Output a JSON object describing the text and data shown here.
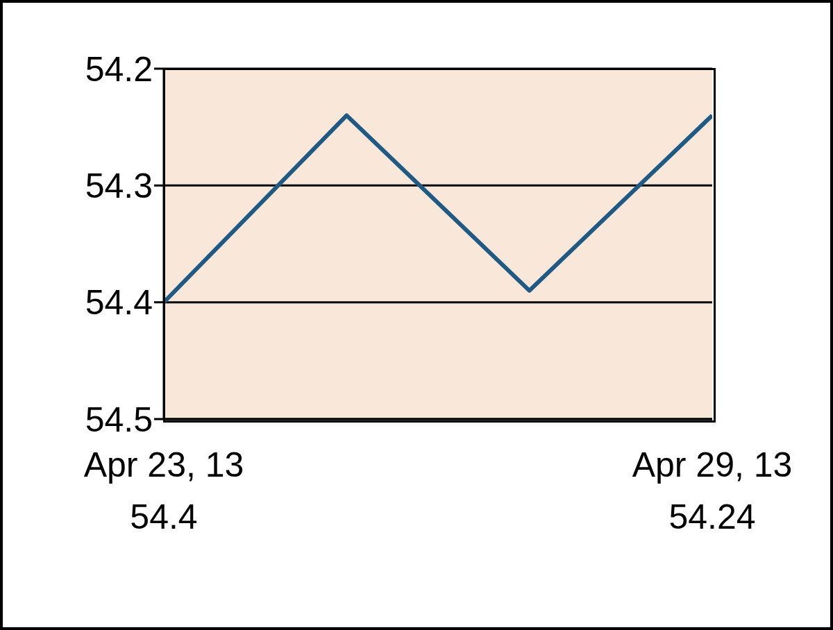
{
  "chart_data": {
    "type": "line",
    "categories": [
      "Apr 23, 13",
      null,
      null,
      "Apr 29, 13"
    ],
    "series": [
      {
        "color": "#1f5a85",
        "values": [
          54.4,
          54.24,
          54.39,
          54.24
        ]
      }
    ],
    "ylim": [
      54.5,
      54.2
    ],
    "yticks": [
      54.2,
      54.3,
      54.4,
      54.5
    ],
    "grid": "y",
    "marker": "none",
    "line_style": "solid",
    "annotations": [
      "54.4",
      "54.24"
    ]
  }
}
